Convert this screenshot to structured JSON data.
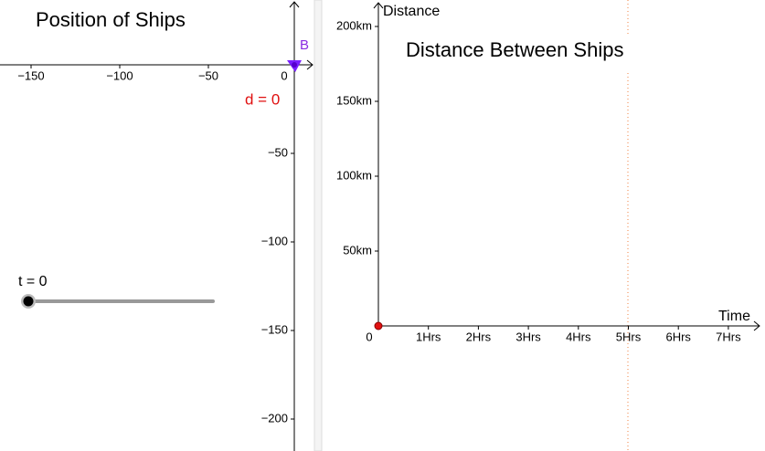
{
  "left_panel": {
    "title": "Position of Ships",
    "x_axis_labels": [
      "−150",
      "−100",
      "−50",
      "0"
    ],
    "y_axis_labels": [
      "−50",
      "−100",
      "−150",
      "−200"
    ],
    "point_label": "B",
    "distance_label": "d = 0",
    "slider_label": "t = 0"
  },
  "right_panel": {
    "title": "Distance Between Ships",
    "y_axis_title": "Distance",
    "x_axis_title": "Time",
    "origin_label": "0",
    "x_axis_labels": [
      "1Hrs",
      "2Hrs",
      "3Hrs",
      "4Hrs",
      "5Hrs",
      "6Hrs",
      "7Hrs"
    ],
    "y_axis_labels": [
      "50km",
      "100km",
      "150km",
      "200km"
    ]
  }
}
